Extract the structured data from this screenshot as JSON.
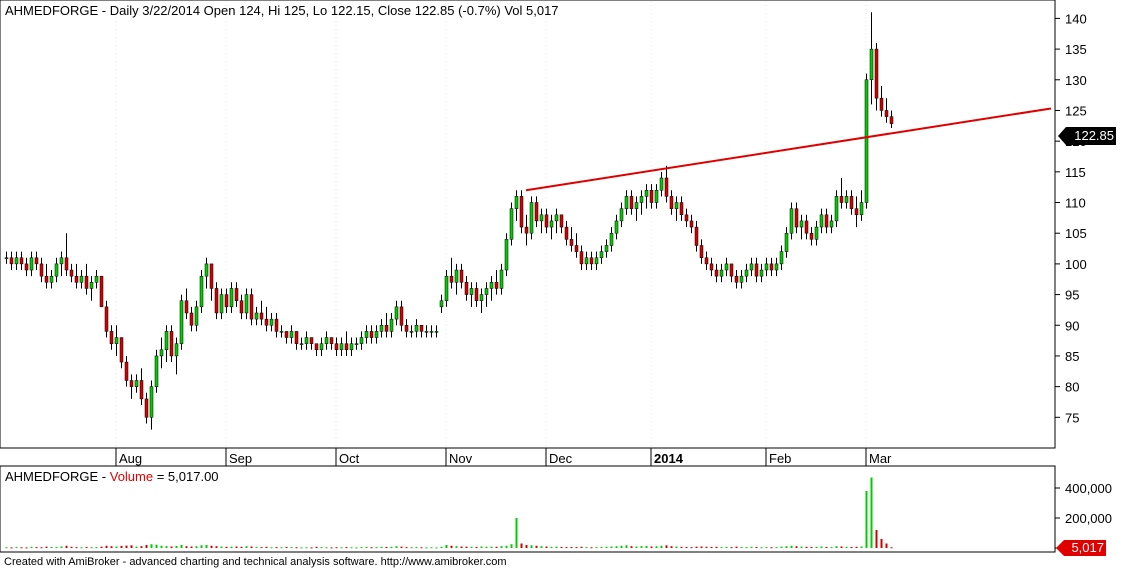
{
  "header": {
    "symbol": "AHMEDFORGE",
    "title_text": " - Daily 3/22/2014 Open 124, Hi 125, Lo 122.15, Close 122.85 (-0.7%) Vol 5,017"
  },
  "volume_pane": {
    "symbol": "AHMEDFORGE",
    "sep": " - ",
    "indicator_label": "Volume",
    "value_text": " = 5,017.00"
  },
  "footer": "Created with AmiBroker - advanced charting and technical analysis software. http://www.amibroker.com",
  "colors": {
    "up": "#00cc00",
    "down": "#d40000",
    "trendline": "#e00000",
    "axis": "#000000",
    "grid": "#c8c8c8"
  },
  "chart_data": {
    "type": "candlestick",
    "price_axis": {
      "ylim": [
        70,
        143
      ],
      "ticks": [
        75,
        80,
        85,
        90,
        95,
        100,
        105,
        110,
        115,
        120,
        125,
        130,
        135,
        140
      ]
    },
    "last_price_label": "122.85",
    "x_labels": [
      {
        "label": "Aug",
        "index": 22,
        "bold": false
      },
      {
        "label": "Sep",
        "index": 44,
        "bold": false
      },
      {
        "label": "Oct",
        "index": 66,
        "bold": false
      },
      {
        "label": "Nov",
        "index": 88,
        "bold": false
      },
      {
        "label": "Dec",
        "index": 108,
        "bold": false
      },
      {
        "label": "2014",
        "index": 129,
        "bold": true
      },
      {
        "label": "Feb",
        "index": 152,
        "bold": false
      },
      {
        "label": "Mar",
        "index": 172,
        "bold": false
      }
    ],
    "trendline": {
      "from": {
        "index": 104,
        "price": 112
      },
      "to": {
        "index": 197,
        "price": 123.8
      }
    },
    "volume_axis": {
      "ylim": [
        0,
        480000
      ],
      "ticks": [
        {
          "v": 0,
          "label": "0"
        },
        {
          "v": 200000,
          "label": "200,000"
        },
        {
          "v": 400000,
          "label": "400,000"
        }
      ]
    },
    "last_volume_label": "5,017",
    "bars": [
      [
        101,
        102,
        100,
        101,
        5000
      ],
      [
        101,
        102,
        99,
        100,
        4000
      ],
      [
        100,
        102,
        99,
        101,
        6000
      ],
      [
        101,
        102,
        99,
        100,
        5000
      ],
      [
        100,
        101,
        98,
        99,
        4000
      ],
      [
        99,
        102,
        98,
        101,
        8000
      ],
      [
        101,
        102,
        99,
        100,
        6000
      ],
      [
        100,
        101,
        97,
        98,
        5000
      ],
      [
        98,
        100,
        96,
        97,
        9000
      ],
      [
        97,
        99,
        96,
        98,
        7000
      ],
      [
        98,
        101,
        97,
        100,
        6000
      ],
      [
        100,
        102,
        98,
        101,
        10000
      ],
      [
        101,
        105,
        98,
        99,
        15000
      ],
      [
        99,
        100,
        97,
        98,
        8000
      ],
      [
        98,
        100,
        96,
        97,
        6000
      ],
      [
        97,
        99,
        96,
        98,
        5000
      ],
      [
        98,
        100,
        95,
        96,
        7000
      ],
      [
        96,
        98,
        94,
        97,
        5000
      ],
      [
        97,
        99,
        96,
        98,
        6000
      ],
      [
        98,
        98,
        93,
        93,
        9000
      ],
      [
        93,
        94,
        88,
        89,
        15000
      ],
      [
        89,
        90,
        86,
        87,
        12000
      ],
      [
        87,
        90,
        85,
        88,
        10000
      ],
      [
        88,
        88,
        83,
        84,
        14000
      ],
      [
        84,
        85,
        80,
        81,
        16000
      ],
      [
        81,
        82,
        78,
        80,
        18000
      ],
      [
        80,
        82,
        79,
        81,
        9000
      ],
      [
        81,
        83,
        77,
        78,
        12000
      ],
      [
        78,
        79,
        74,
        75,
        20000
      ],
      [
        75,
        81,
        73,
        80,
        25000
      ],
      [
        80,
        86,
        79,
        85,
        22000
      ],
      [
        85,
        88,
        83,
        86,
        15000
      ],
      [
        86,
        90,
        84,
        89,
        12000
      ],
      [
        89,
        90,
        84,
        85,
        10000
      ],
      [
        85,
        88,
        82,
        87,
        14000
      ],
      [
        87,
        95,
        86,
        94,
        20000
      ],
      [
        94,
        96,
        91,
        92,
        12000
      ],
      [
        92,
        93,
        89,
        90,
        10000
      ],
      [
        90,
        94,
        89,
        93,
        12000
      ],
      [
        93,
        99,
        92,
        98,
        18000
      ],
      [
        98,
        101,
        96,
        100,
        20000
      ],
      [
        100,
        100,
        94,
        96,
        15000
      ],
      [
        96,
        97,
        91,
        92,
        12000
      ],
      [
        92,
        96,
        91,
        95,
        10000
      ],
      [
        95,
        96,
        92,
        93,
        8000
      ],
      [
        93,
        97,
        92,
        96,
        9000
      ],
      [
        96,
        97,
        93,
        94,
        10000
      ],
      [
        94,
        95,
        91,
        92,
        8000
      ],
      [
        92,
        96,
        91,
        95,
        12000
      ],
      [
        95,
        96,
        90,
        91,
        10000
      ],
      [
        91,
        93,
        90,
        92,
        7000
      ],
      [
        92,
        94,
        90,
        91,
        6000
      ],
      [
        91,
        93,
        89,
        90,
        8000
      ],
      [
        90,
        92,
        89,
        91,
        5000
      ],
      [
        91,
        92,
        88,
        89,
        6000
      ],
      [
        89,
        90,
        88,
        89,
        5000
      ],
      [
        89,
        89,
        87,
        88,
        7000
      ],
      [
        88,
        90,
        87,
        89,
        6000
      ],
      [
        89,
        89,
        86,
        87,
        5000
      ],
      [
        87,
        88,
        86,
        87,
        4000
      ],
      [
        87,
        89,
        86,
        88,
        5000
      ],
      [
        88,
        88,
        86,
        87,
        4000
      ],
      [
        87,
        87,
        85,
        86,
        8000
      ],
      [
        86,
        88,
        85,
        87,
        6000
      ],
      [
        87,
        89,
        86,
        88,
        5000
      ],
      [
        88,
        88,
        86,
        87,
        4000
      ],
      [
        87,
        88,
        85,
        86,
        5000
      ],
      [
        86,
        88,
        85,
        87,
        5000
      ],
      [
        87,
        89,
        85,
        86,
        6000
      ],
      [
        86,
        88,
        85,
        87,
        5000
      ],
      [
        87,
        88,
        86,
        87,
        4000
      ],
      [
        87,
        89,
        86,
        88,
        6000
      ],
      [
        88,
        90,
        87,
        89,
        7000
      ],
      [
        89,
        90,
        87,
        88,
        5000
      ],
      [
        88,
        90,
        87,
        89,
        6000
      ],
      [
        89,
        91,
        88,
        90,
        8000
      ],
      [
        90,
        92,
        88,
        89,
        7000
      ],
      [
        89,
        92,
        88,
        91,
        8000
      ],
      [
        91,
        94,
        90,
        93,
        12000
      ],
      [
        93,
        94,
        89,
        90,
        9000
      ],
      [
        90,
        91,
        88,
        89,
        6000
      ],
      [
        89,
        90,
        88,
        89,
        5000
      ],
      [
        89,
        91,
        88,
        90,
        6000
      ],
      [
        90,
        90,
        88,
        89,
        5000
      ],
      [
        89,
        90,
        88,
        89,
        4000
      ],
      [
        89,
        90,
        88,
        89,
        5000
      ],
      [
        89,
        90,
        88,
        89,
        4000
      ],
      [
        93,
        95,
        92,
        94,
        8000
      ],
      [
        94,
        99,
        93,
        98,
        20000
      ],
      [
        98,
        101,
        96,
        97,
        15000
      ],
      [
        97,
        100,
        95,
        99,
        12000
      ],
      [
        99,
        100,
        96,
        97,
        10000
      ],
      [
        97,
        98,
        94,
        95,
        9000
      ],
      [
        95,
        97,
        93,
        96,
        8000
      ],
      [
        96,
        97,
        93,
        94,
        7000
      ],
      [
        94,
        96,
        92,
        95,
        10000
      ],
      [
        95,
        97,
        93,
        96,
        8000
      ],
      [
        96,
        98,
        94,
        97,
        9000
      ],
      [
        97,
        99,
        95,
        96,
        8000
      ],
      [
        96,
        100,
        95,
        99,
        12000
      ],
      [
        99,
        105,
        98,
        104,
        15000
      ],
      [
        104,
        110,
        103,
        109,
        25000
      ],
      [
        109,
        112,
        107,
        111,
        200000
      ],
      [
        111,
        112,
        105,
        106,
        30000
      ],
      [
        106,
        108,
        103,
        105,
        20000
      ],
      [
        105,
        111,
        104,
        110,
        18000
      ],
      [
        110,
        111,
        106,
        107,
        15000
      ],
      [
        107,
        109,
        105,
        108,
        12000
      ],
      [
        108,
        109,
        105,
        106,
        10000
      ],
      [
        106,
        108,
        104,
        107,
        8000
      ],
      [
        107,
        109,
        105,
        108,
        9000
      ],
      [
        108,
        108,
        105,
        106,
        7000
      ],
      [
        106,
        107,
        103,
        104,
        6000
      ],
      [
        104,
        106,
        102,
        103,
        7000
      ],
      [
        103,
        105,
        101,
        102,
        6000
      ],
      [
        102,
        103,
        99,
        100,
        8000
      ],
      [
        100,
        102,
        99,
        101,
        6000
      ],
      [
        101,
        102,
        99,
        100,
        5000
      ],
      [
        100,
        102,
        99,
        101,
        6000
      ],
      [
        101,
        103,
        100,
        102,
        7000
      ],
      [
        102,
        104,
        101,
        103,
        8000
      ],
      [
        103,
        106,
        102,
        105,
        10000
      ],
      [
        105,
        108,
        104,
        107,
        12000
      ],
      [
        107,
        110,
        106,
        109,
        15000
      ],
      [
        109,
        112,
        108,
        111,
        18000
      ],
      [
        111,
        112,
        108,
        109,
        12000
      ],
      [
        109,
        111,
        107,
        110,
        10000
      ],
      [
        110,
        112,
        108,
        111,
        12000
      ],
      [
        111,
        113,
        109,
        112,
        14000
      ],
      [
        112,
        113,
        109,
        110,
        10000
      ],
      [
        110,
        113,
        109,
        112,
        12000
      ],
      [
        112,
        115,
        111,
        114,
        15000
      ],
      [
        114,
        116,
        110,
        111,
        18000
      ],
      [
        111,
        112,
        108,
        109,
        12000
      ],
      [
        109,
        111,
        107,
        110,
        10000
      ],
      [
        110,
        111,
        107,
        108,
        8000
      ],
      [
        108,
        109,
        106,
        107,
        7000
      ],
      [
        107,
        108,
        105,
        106,
        6000
      ],
      [
        106,
        107,
        102,
        103,
        9000
      ],
      [
        103,
        104,
        100,
        101,
        10000
      ],
      [
        101,
        102,
        99,
        100,
        8000
      ],
      [
        100,
        101,
        98,
        99,
        7000
      ],
      [
        99,
        100,
        97,
        98,
        8000
      ],
      [
        98,
        100,
        97,
        99,
        6000
      ],
      [
        99,
        101,
        98,
        100,
        7000
      ],
      [
        100,
        100,
        97,
        98,
        6000
      ],
      [
        98,
        99,
        96,
        97,
        9000
      ],
      [
        97,
        99,
        96,
        98,
        7000
      ],
      [
        98,
        100,
        97,
        99,
        6000
      ],
      [
        99,
        101,
        98,
        100,
        8000
      ],
      [
        100,
        101,
        97,
        98,
        7000
      ],
      [
        98,
        100,
        97,
        99,
        5000
      ],
      [
        99,
        101,
        98,
        100,
        6000
      ],
      [
        100,
        101,
        98,
        99,
        5000
      ],
      [
        99,
        101,
        98,
        100,
        6000
      ],
      [
        100,
        103,
        99,
        102,
        9000
      ],
      [
        102,
        106,
        101,
        105,
        12000
      ],
      [
        105,
        110,
        104,
        109,
        15000
      ],
      [
        109,
        110,
        105,
        106,
        12000
      ],
      [
        106,
        108,
        104,
        107,
        9000
      ],
      [
        107,
        108,
        104,
        105,
        8000
      ],
      [
        105,
        106,
        103,
        104,
        7000
      ],
      [
        104,
        107,
        103,
        106,
        8000
      ],
      [
        106,
        109,
        105,
        108,
        10000
      ],
      [
        108,
        109,
        105,
        106,
        7000
      ],
      [
        106,
        108,
        105,
        107,
        6000
      ],
      [
        107,
        112,
        106,
        111,
        12000
      ],
      [
        111,
        114,
        109,
        110,
        10000
      ],
      [
        110,
        112,
        109,
        111,
        8000
      ],
      [
        111,
        112,
        108,
        109,
        7000
      ],
      [
        109,
        111,
        106,
        108,
        8000
      ],
      [
        108,
        112,
        107,
        110,
        10000
      ],
      [
        110,
        131,
        109,
        130,
        380000
      ],
      [
        130,
        141,
        126,
        135,
        470000
      ],
      [
        135,
        136,
        125,
        127,
        120000
      ],
      [
        127,
        129,
        124,
        125,
        60000
      ],
      [
        125,
        127,
        123,
        124,
        30000
      ],
      [
        124,
        125,
        122.15,
        122.85,
        5017
      ]
    ]
  }
}
